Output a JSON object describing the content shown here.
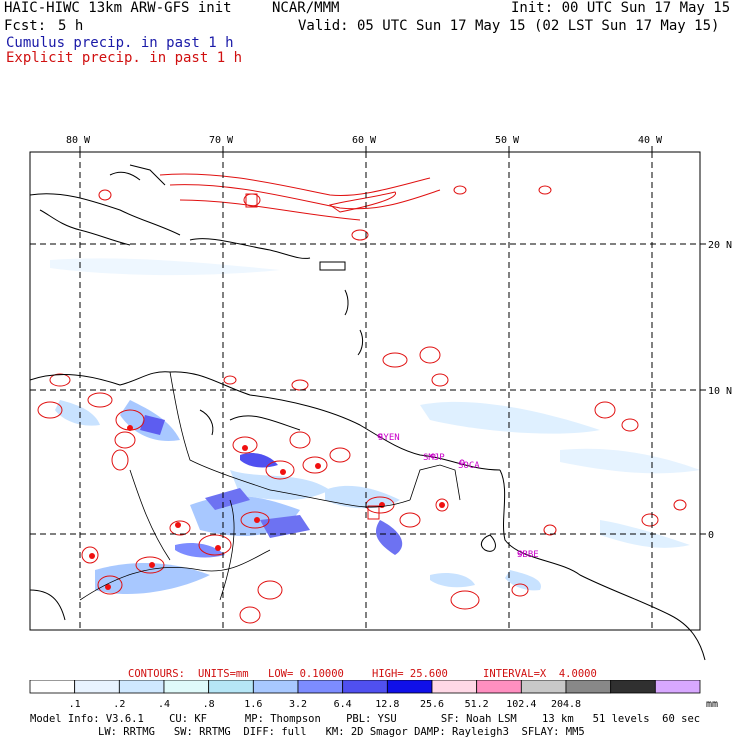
{
  "header": {
    "model_title": "HAIC-HIWC 13km ARW-GFS init",
    "org": "NCAR/MMM",
    "init": "Init: 00 UTC Sun 17 May 15",
    "fcst_label": "Fcst:",
    "fcst_value": "5 h",
    "valid": "Valid: 05 UTC Sun 17 May 15 (02 LST Sun 17 May 15)",
    "cumulus": "Cumulus precip. in past 1 h",
    "explicit": "Explicit precip. in past 1 h"
  },
  "map": {
    "lon_labels": [
      "80 W",
      "70 W",
      "60 W",
      "50 W",
      "40 W"
    ],
    "lat_labels": [
      "20 N",
      "10 N",
      "0"
    ],
    "stations": [
      "SYEN",
      "SMJP",
      "SOCA",
      "SBBE"
    ],
    "colors": {
      "cumulus": "#5d5df0",
      "explicit": "#e01010",
      "coast": "#000000",
      "station": "#c800c8"
    }
  },
  "contours": {
    "label": "CONTOURS:",
    "units": "UNITS=mm",
    "low": "LOW= 0.10000",
    "high": "HIGH= 25.600",
    "interval": "INTERVAL=X  4.0000"
  },
  "colorbar": {
    "unit": "mm",
    "colors": [
      "#ffffff",
      "#e8f3ff",
      "#cfe8ff",
      "#dffafa",
      "#b6e6f6",
      "#a8c8ff",
      "#7d8cff",
      "#5050f0",
      "#1010e8",
      "#ffd8e6",
      "#ff8fc0",
      "#c8c8c8",
      "#888888",
      "#303030",
      "#d8a8ff"
    ],
    "labels": [
      ".1",
      ".2",
      ".4",
      ".8",
      "1.6",
      "3.2",
      "6.4",
      "12.8",
      "25.6",
      "51.2",
      "102.4",
      "204.8"
    ]
  },
  "model_info": {
    "line1": "Model Info: V3.6.1    CU: KF      MP: Thompson    PBL: YSU       SF: Noah LSM    13 km   51 levels  60 sec",
    "line2": "LW: RRTMG   SW: RRTMG  DIFF: full   KM: 2D Smagor DAMP: Rayleigh3  SFLAY: MM5"
  }
}
